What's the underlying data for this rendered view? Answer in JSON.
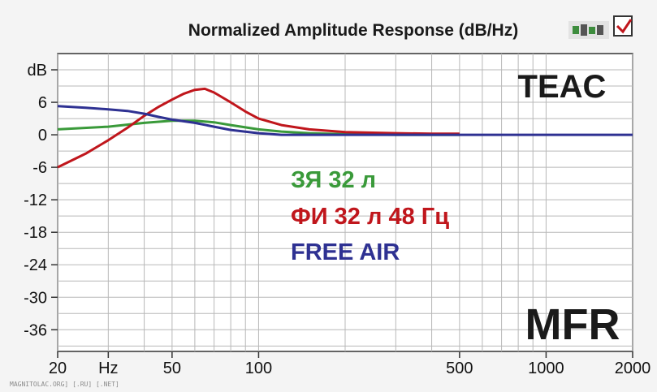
{
  "chart_data": {
    "type": "line",
    "title": "Normalized Amplitude Response (dB/Hz)",
    "ylabel": "dB",
    "xlabel": "Hz",
    "x_scale": "log",
    "xlim": [
      20,
      2000
    ],
    "ylim": [
      -40,
      15
    ],
    "grid": true,
    "x_tick_labels": [
      "20",
      "Hz",
      "50",
      "100",
      "500",
      "1000",
      "2000"
    ],
    "x_tick_values": [
      20,
      30,
      50,
      100,
      500,
      1000,
      2000
    ],
    "y_tick_labels": [
      "dB",
      "6",
      "0",
      "-6",
      "-12",
      "-18",
      "-24",
      "-30",
      "-36"
    ],
    "y_tick_values": [
      12,
      6,
      0,
      -6,
      -12,
      -18,
      -24,
      -30,
      -36
    ],
    "brand": "TEAC",
    "badge": "MFR",
    "series": [
      {
        "name": "ЗЯ 32 л",
        "color": "#3a9a3a",
        "points": [
          [
            20,
            1.0
          ],
          [
            30,
            1.5
          ],
          [
            40,
            2.2
          ],
          [
            50,
            2.6
          ],
          [
            60,
            2.6
          ],
          [
            70,
            2.3
          ],
          [
            80,
            1.8
          ],
          [
            100,
            1.0
          ],
          [
            120,
            0.6
          ],
          [
            150,
            0.3
          ],
          [
            200,
            0.1
          ],
          [
            300,
            0.0
          ],
          [
            500,
            0.0
          ]
        ]
      },
      {
        "name": "ФИ 32 л 48 Гц",
        "color": "#c0161c",
        "points": [
          [
            20,
            -6.0
          ],
          [
            25,
            -3.5
          ],
          [
            30,
            -1.0
          ],
          [
            35,
            1.3
          ],
          [
            40,
            3.5
          ],
          [
            45,
            5.2
          ],
          [
            50,
            6.5
          ],
          [
            55,
            7.6
          ],
          [
            60,
            8.3
          ],
          [
            65,
            8.5
          ],
          [
            70,
            7.8
          ],
          [
            80,
            6.0
          ],
          [
            90,
            4.3
          ],
          [
            100,
            3.0
          ],
          [
            120,
            1.8
          ],
          [
            150,
            1.0
          ],
          [
            200,
            0.5
          ],
          [
            300,
            0.3
          ],
          [
            400,
            0.2
          ],
          [
            500,
            0.2
          ]
        ]
      },
      {
        "name": "FREE AIR",
        "color": "#2e3192",
        "points": [
          [
            20,
            5.3
          ],
          [
            25,
            5.0
          ],
          [
            30,
            4.7
          ],
          [
            35,
            4.4
          ],
          [
            40,
            3.9
          ],
          [
            45,
            3.3
          ],
          [
            50,
            2.8
          ],
          [
            60,
            2.2
          ],
          [
            70,
            1.5
          ],
          [
            80,
            0.9
          ],
          [
            100,
            0.3
          ],
          [
            120,
            0.0
          ],
          [
            200,
            0.0
          ],
          [
            500,
            0.0
          ],
          [
            1000,
            0.0
          ],
          [
            2000,
            0.0
          ]
        ]
      }
    ]
  },
  "watermark": "MAGNITOLAC.ORG] [.RU] [.NET]",
  "logo_colors": {
    "green": "#3d8c3d",
    "red": "#c0161c"
  }
}
